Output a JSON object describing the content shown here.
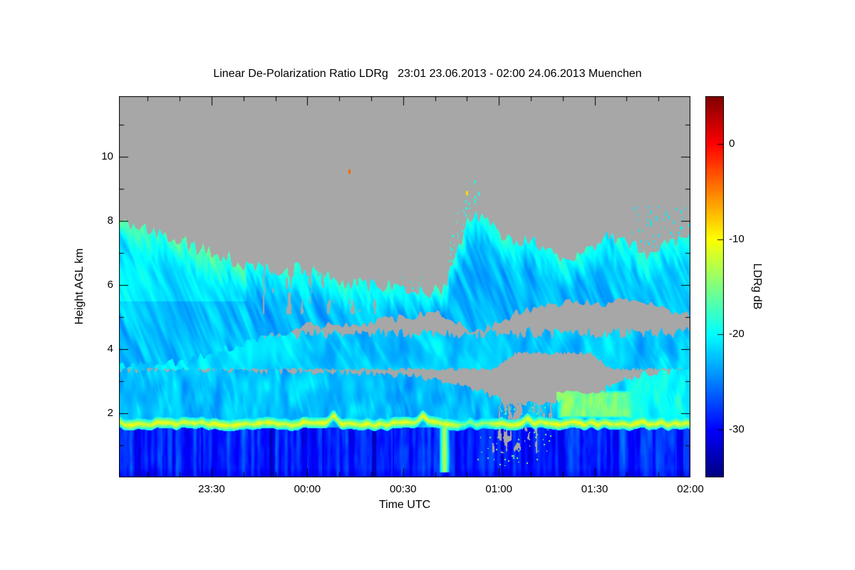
{
  "figure": {
    "background": "#ffffff"
  },
  "chart_data": {
    "type": "heatmap",
    "title": "Linear De-Polarization Ratio LDRg   23:01 23.06.2013 - 02:00 24.06.2013 Muenchen",
    "xlabel": "Time UTC",
    "ylabel": "Height AGL km",
    "time_start": "23:01 23.06.2013",
    "time_end": "02:00 24.06.2013",
    "station": "Muenchen",
    "x_total_minutes": 179,
    "x_ticks": [
      {
        "label": "23:30",
        "minutes": 29
      },
      {
        "label": "00:00",
        "minutes": 59
      },
      {
        "label": "00:30",
        "minutes": 89
      },
      {
        "label": "01:00",
        "minutes": 119
      },
      {
        "label": "01:30",
        "minutes": 149
      },
      {
        "label": "02:00",
        "minutes": 179
      }
    ],
    "x_minor_step_minutes": 10,
    "y_ticks": [
      2,
      4,
      6,
      8,
      10
    ],
    "y_minor_ticks": [
      1,
      3,
      5,
      7,
      9,
      11
    ],
    "y_range_km": [
      0,
      11.9
    ],
    "grid": false,
    "colorbar": {
      "label": "LDRg dB",
      "ticks": [
        0,
        -10,
        -20,
        -30
      ],
      "range": [
        -35,
        5
      ],
      "colormap": "jet"
    },
    "no_data_color": "#a7a7a7",
    "features": {
      "melting_layer": {
        "height_km": 1.68,
        "ldr_db": -10.5,
        "half_thickness_km": 0.17,
        "bumps": [
          {
            "minutes": 67,
            "rise_km": 0.22
          },
          {
            "minutes": 95.5,
            "rise_km": 0.28
          },
          {
            "minutes": 128,
            "rise_km": 0.16
          }
        ],
        "weak_segment_minutes": [
          104,
          118
        ]
      },
      "boundary_layer": {
        "top_km": 1.56,
        "ldr_db": -28.5
      },
      "precip_streak": {
        "minutes": 102,
        "height_km": [
          0.15,
          1.55
        ],
        "ldr_db": -13
      },
      "mid_layer": {
        "base_km": 1.56,
        "ldr_db": -23.5,
        "top_profile": {
          "minutes": [
            0,
            20,
            40,
            60,
            80,
            90,
            100,
            110,
            118,
            126,
            134,
            142,
            150,
            158,
            166,
            172,
            179
          ],
          "height_km": [
            3.35,
            3.4,
            3.35,
            3.3,
            3.25,
            3.2,
            3.05,
            2.8,
            2.5,
            2.4,
            2.35,
            2.45,
            2.7,
            3.05,
            3.25,
            3.3,
            3.4
          ]
        }
      },
      "band_layer": {
        "base_km": 3.38,
        "top_km": 4.5,
        "ldr_db": -23
      },
      "upper_cloud": {
        "ldr_db": -23,
        "top_profile": {
          "minutes": [
            0,
            8,
            16,
            24,
            32,
            40,
            48,
            56,
            64,
            72,
            80,
            88,
            96,
            102,
            106,
            110,
            114,
            118,
            124,
            130,
            136,
            142,
            148,
            154,
            160,
            166,
            172,
            179
          ],
          "height_km": [
            7.9,
            7.8,
            7.5,
            7.2,
            6.9,
            6.6,
            6.5,
            6.6,
            6.3,
            6.1,
            6.0,
            6.0,
            5.7,
            5.9,
            7.2,
            8.1,
            8.2,
            7.8,
            7.3,
            7.4,
            7.0,
            6.8,
            7.2,
            7.5,
            7.3,
            7.0,
            7.3,
            7.6
          ]
        },
        "base_profile": {
          "minutes": [
            0,
            20,
            40,
            50,
            60,
            70,
            80,
            90,
            100,
            106,
            112,
            118,
            124,
            130,
            140,
            150,
            160,
            170,
            179
          ],
          "height_km": [
            3.5,
            3.6,
            4.2,
            4.5,
            4.8,
            4.7,
            4.9,
            5.0,
            5.2,
            4.8,
            4.5,
            4.8,
            5.1,
            5.3,
            5.5,
            5.4,
            5.6,
            5.3,
            5.0
          ]
        }
      },
      "clear_notch": {
        "minutes": [
          119.5,
          152.5
        ],
        "height_km": [
          2.3,
          3.55
        ]
      },
      "bright_patch": {
        "minutes": [
          137,
          161
        ],
        "height_km": [
          1.83,
          2.72
        ],
        "ldr_db": -16
      },
      "speck_dots": [
        {
          "minutes": 72.2,
          "height_km": 9.55,
          "ldr_db": -4
        },
        {
          "minutes": 109,
          "height_km": 8.87,
          "ldr_db": -8.5
        }
      ]
    }
  }
}
